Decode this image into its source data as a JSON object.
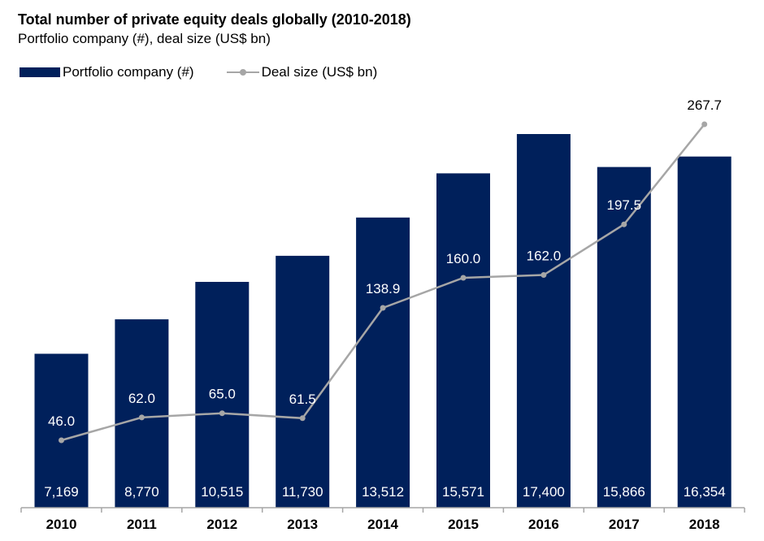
{
  "chart_data": {
    "type": "bar",
    "title": "Total number of private equity deals globally (2010-2018)",
    "subtitle": "Portfolio company (#), deal size (US$ bn)",
    "categories": [
      "2010",
      "2011",
      "2012",
      "2013",
      "2014",
      "2015",
      "2016",
      "2017",
      "2018"
    ],
    "series": [
      {
        "name": "Portfolio company (#)",
        "type": "bar",
        "color": "#00205B",
        "values": [
          7169,
          8770,
          10515,
          11730,
          13512,
          15571,
          17400,
          15866,
          16354
        ],
        "labels": [
          "7,169",
          "8,770",
          "10,515",
          "11,730",
          "13,512",
          "15,571",
          "17,400",
          "15,866",
          "16,354"
        ]
      },
      {
        "name": "Deal size (US$ bn)",
        "type": "line",
        "color": "#A6A6A6",
        "values": [
          46.0,
          62.0,
          65.0,
          61.5,
          138.9,
          160.0,
          162.0,
          197.5,
          267.7
        ],
        "labels": [
          "46.0",
          "62.0",
          "65.0",
          "61.5",
          "138.9",
          "160.0",
          "162.0",
          "197.5",
          "267.7"
        ]
      }
    ],
    "legend_position": "top-left",
    "grid": false
  }
}
